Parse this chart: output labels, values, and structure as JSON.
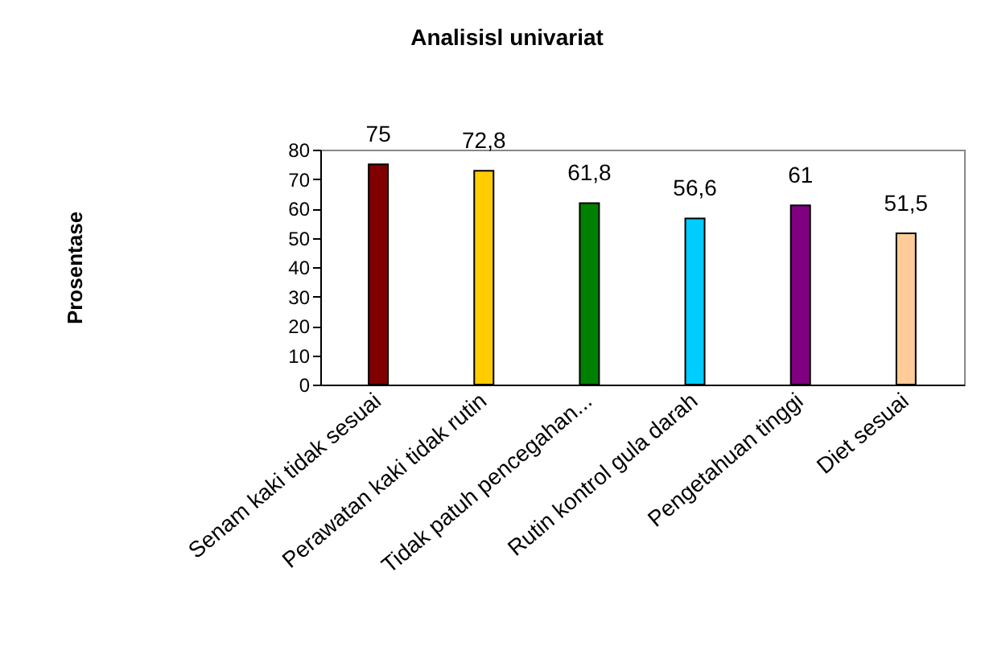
{
  "chart_data": {
    "type": "bar",
    "title": "Analisisl univariat",
    "ylabel": "Prosentase",
    "categories": [
      "Senam kaki tidak sesuai",
      "Perawatan kaki tidak rutin",
      "Tidak patuh pencegahan...",
      "Rutin kontrol gula darah",
      "Pengetahuan tinggi",
      "Diet sesuai"
    ],
    "values": [
      75,
      72.8,
      61.8,
      56.6,
      61,
      51.5
    ],
    "value_labels": [
      "75",
      "72,8",
      "61,8",
      "56,6",
      "61",
      "51,5"
    ],
    "colors": [
      "#800000",
      "#ffcc00",
      "#008000",
      "#00ccff",
      "#800080",
      "#ffcc99"
    ],
    "ylim": [
      0,
      80
    ],
    "yticks": [
      0,
      10,
      20,
      30,
      40,
      50,
      60,
      70,
      80
    ]
  }
}
